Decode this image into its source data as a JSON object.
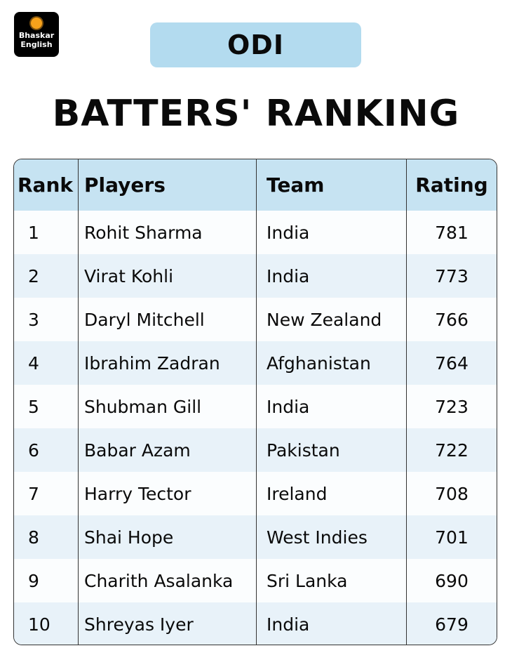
{
  "logo": {
    "line1": "Bhaskar",
    "line2": "English"
  },
  "badge": "ODI",
  "title": "BATTERS' RANKING",
  "table": {
    "headers": [
      "Rank",
      "Players",
      "Team",
      "Rating"
    ],
    "rows": [
      {
        "rank": "1",
        "player": "Rohit Sharma",
        "team": "India",
        "rating": "781"
      },
      {
        "rank": "2",
        "player": "Virat Kohli",
        "team": "India",
        "rating": "773"
      },
      {
        "rank": "3",
        "player": "Daryl Mitchell",
        "team": "New Zealand",
        "rating": "766"
      },
      {
        "rank": "4",
        "player": "Ibrahim Zadran",
        "team": "Afghanistan",
        "rating": "764"
      },
      {
        "rank": "5",
        "player": "Shubman Gill",
        "team": "India",
        "rating": "723"
      },
      {
        "rank": "6",
        "player": "Babar Azam",
        "team": "Pakistan",
        "rating": "722"
      },
      {
        "rank": "7",
        "player": "Harry Tector",
        "team": "Ireland",
        "rating": "708"
      },
      {
        "rank": "8",
        "player": "Shai Hope",
        "team": "West Indies",
        "rating": "701"
      },
      {
        "rank": "9",
        "player": "Charith Asalanka",
        "team": "Sri Lanka",
        "rating": "690"
      },
      {
        "rank": "10",
        "player": "Shreyas Iyer",
        "team": "India",
        "rating": "679"
      }
    ]
  },
  "colors": {
    "badge_bg": "#b3dbef",
    "header_bg": "#c6e3f2",
    "logo_sun": "#f7a21b"
  }
}
